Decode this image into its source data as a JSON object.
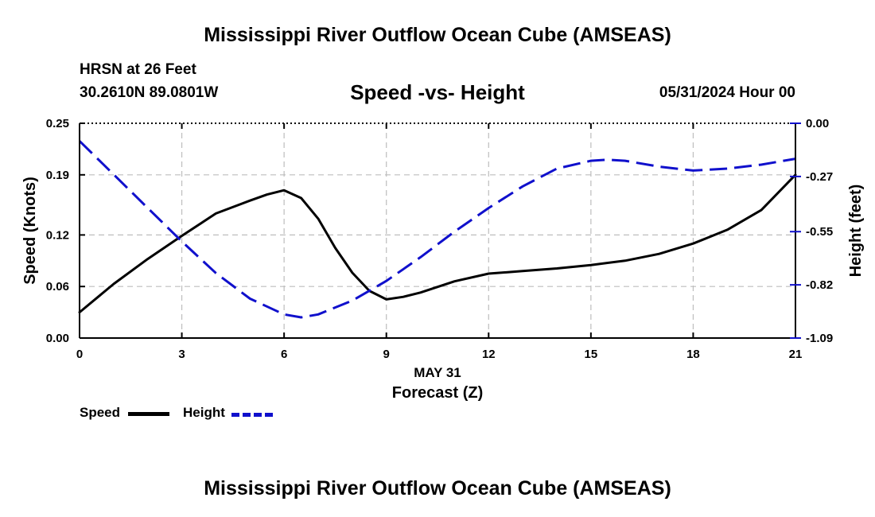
{
  "header": {
    "title": "Mississippi River Outflow Ocean Cube (AMSEAS)",
    "station": "HRSN at 26 Feet",
    "coords": "30.2610N  89.0801W",
    "subtitle": "Speed -vs- Height",
    "datetime": "05/31/2024 Hour 00"
  },
  "footer": {
    "title": "Mississippi River Outflow Ocean Cube (AMSEAS)"
  },
  "legend": {
    "speed_label": "Speed",
    "height_label": "Height"
  },
  "chart_data": {
    "type": "line",
    "title": "Speed -vs- Height",
    "xlabel_date": "MAY 31",
    "xlabel": "Forecast (Z)",
    "ylabel_left": "Speed (Knots)",
    "ylabel_right": "Height (feet)",
    "xlim": [
      0,
      21
    ],
    "ylim_left": [
      0.0,
      0.25
    ],
    "ylim_right": [
      -1.09,
      0.0
    ],
    "x_ticks": [
      0,
      3,
      6,
      9,
      12,
      15,
      18,
      21
    ],
    "x_tick_labels": [
      "0",
      "3",
      "6",
      "9",
      "12",
      "15",
      "18",
      "21"
    ],
    "y_left_ticks": [
      0.0,
      0.06,
      0.12,
      0.19,
      0.25
    ],
    "y_left_tick_labels": [
      "0.00",
      "0.06",
      "0.12",
      "0.19",
      "0.25"
    ],
    "y_right_ticks": [
      -1.09,
      -0.82,
      -0.55,
      -0.27,
      0.0
    ],
    "y_right_tick_labels": [
      "-1.09",
      "-0.82",
      "-0.55",
      "-0.27",
      "0.00"
    ],
    "grid": true,
    "legend_position": "bottom-left",
    "series": [
      {
        "name": "Speed",
        "axis": "left",
        "color": "#000000",
        "style": "solid",
        "x": [
          0,
          1,
          2,
          3,
          4,
          5,
          5.5,
          6,
          6.5,
          7,
          7.5,
          8,
          8.5,
          9,
          9.5,
          10,
          11,
          12,
          13,
          14,
          15,
          16,
          17,
          18,
          19,
          20,
          21
        ],
        "values": [
          0.03,
          0.063,
          0.092,
          0.119,
          0.145,
          0.16,
          0.167,
          0.172,
          0.163,
          0.139,
          0.105,
          0.076,
          0.055,
          0.045,
          0.048,
          0.053,
          0.066,
          0.075,
          0.078,
          0.081,
          0.085,
          0.09,
          0.098,
          0.11,
          0.126,
          0.149,
          0.19
        ]
      },
      {
        "name": "Height",
        "axis": "right",
        "color": "#1010cc",
        "style": "dashed",
        "x": [
          0,
          1,
          2,
          3,
          4,
          5,
          6,
          6.5,
          7,
          8,
          9,
          10,
          11,
          12,
          13,
          14,
          15,
          15.5,
          16,
          17,
          18,
          19,
          20,
          21
        ],
        "values": [
          -0.09,
          -0.26,
          -0.43,
          -0.6,
          -0.76,
          -0.89,
          -0.97,
          -0.985,
          -0.97,
          -0.9,
          -0.8,
          -0.68,
          -0.55,
          -0.43,
          -0.32,
          -0.23,
          -0.19,
          -0.185,
          -0.19,
          -0.22,
          -0.24,
          -0.23,
          -0.21,
          -0.18
        ]
      }
    ]
  }
}
